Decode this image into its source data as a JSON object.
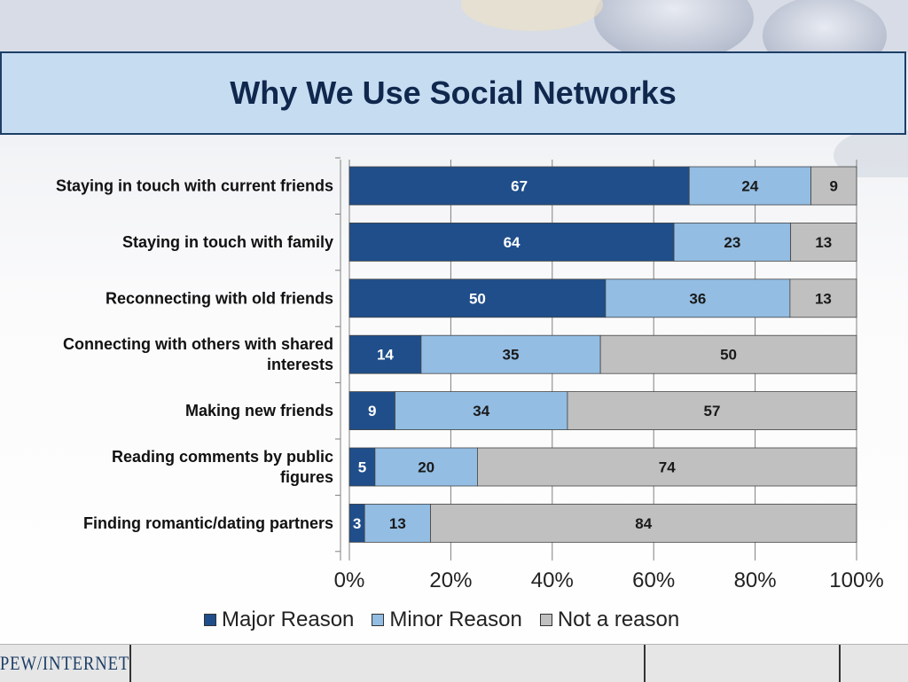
{
  "title": "Why We Use Social Networks",
  "footer": {
    "logo_text": "PEW/INTERNET"
  },
  "colors": {
    "major": "#1f4e8a",
    "minor": "#93bde3",
    "not": "#c0c0c0",
    "title_bg": "#c6dcf1"
  },
  "chart_data": {
    "type": "bar",
    "orientation": "horizontal",
    "stacked": "percent",
    "categories": [
      "Staying in touch with current friends",
      "Staying in touch with family",
      "Reconnecting with old friends",
      "Connecting with others with shared interests",
      "Making new friends",
      "Reading comments by public figures",
      "Finding romantic/dating partners"
    ],
    "category_lines": [
      [
        "Staying in touch with current friends"
      ],
      [
        "Staying in touch with family"
      ],
      [
        "Reconnecting with old friends"
      ],
      [
        "Connecting with others with shared",
        "interests"
      ],
      [
        "Making new friends"
      ],
      [
        "Reading comments by public",
        "figures"
      ],
      [
        "Finding romantic/dating partners"
      ]
    ],
    "series": [
      {
        "name": "Major Reason",
        "values": [
          67,
          64,
          50,
          14,
          9,
          5,
          3
        ],
        "color": "#1f4e8a",
        "label_color": "#ffffff"
      },
      {
        "name": "Minor Reason",
        "values": [
          24,
          23,
          36,
          35,
          34,
          20,
          13
        ],
        "color": "#93bde3",
        "label_color": "#1a1a1a"
      },
      {
        "name": "Not a reason",
        "values": [
          9,
          13,
          13,
          50,
          57,
          74,
          84
        ],
        "color": "#c0c0c0",
        "label_color": "#1a1a1a"
      }
    ],
    "x_ticks": [
      "0%",
      "20%",
      "40%",
      "60%",
      "80%",
      "100%"
    ],
    "xlim": [
      0,
      100
    ],
    "grid": true,
    "legend_position": "bottom"
  }
}
